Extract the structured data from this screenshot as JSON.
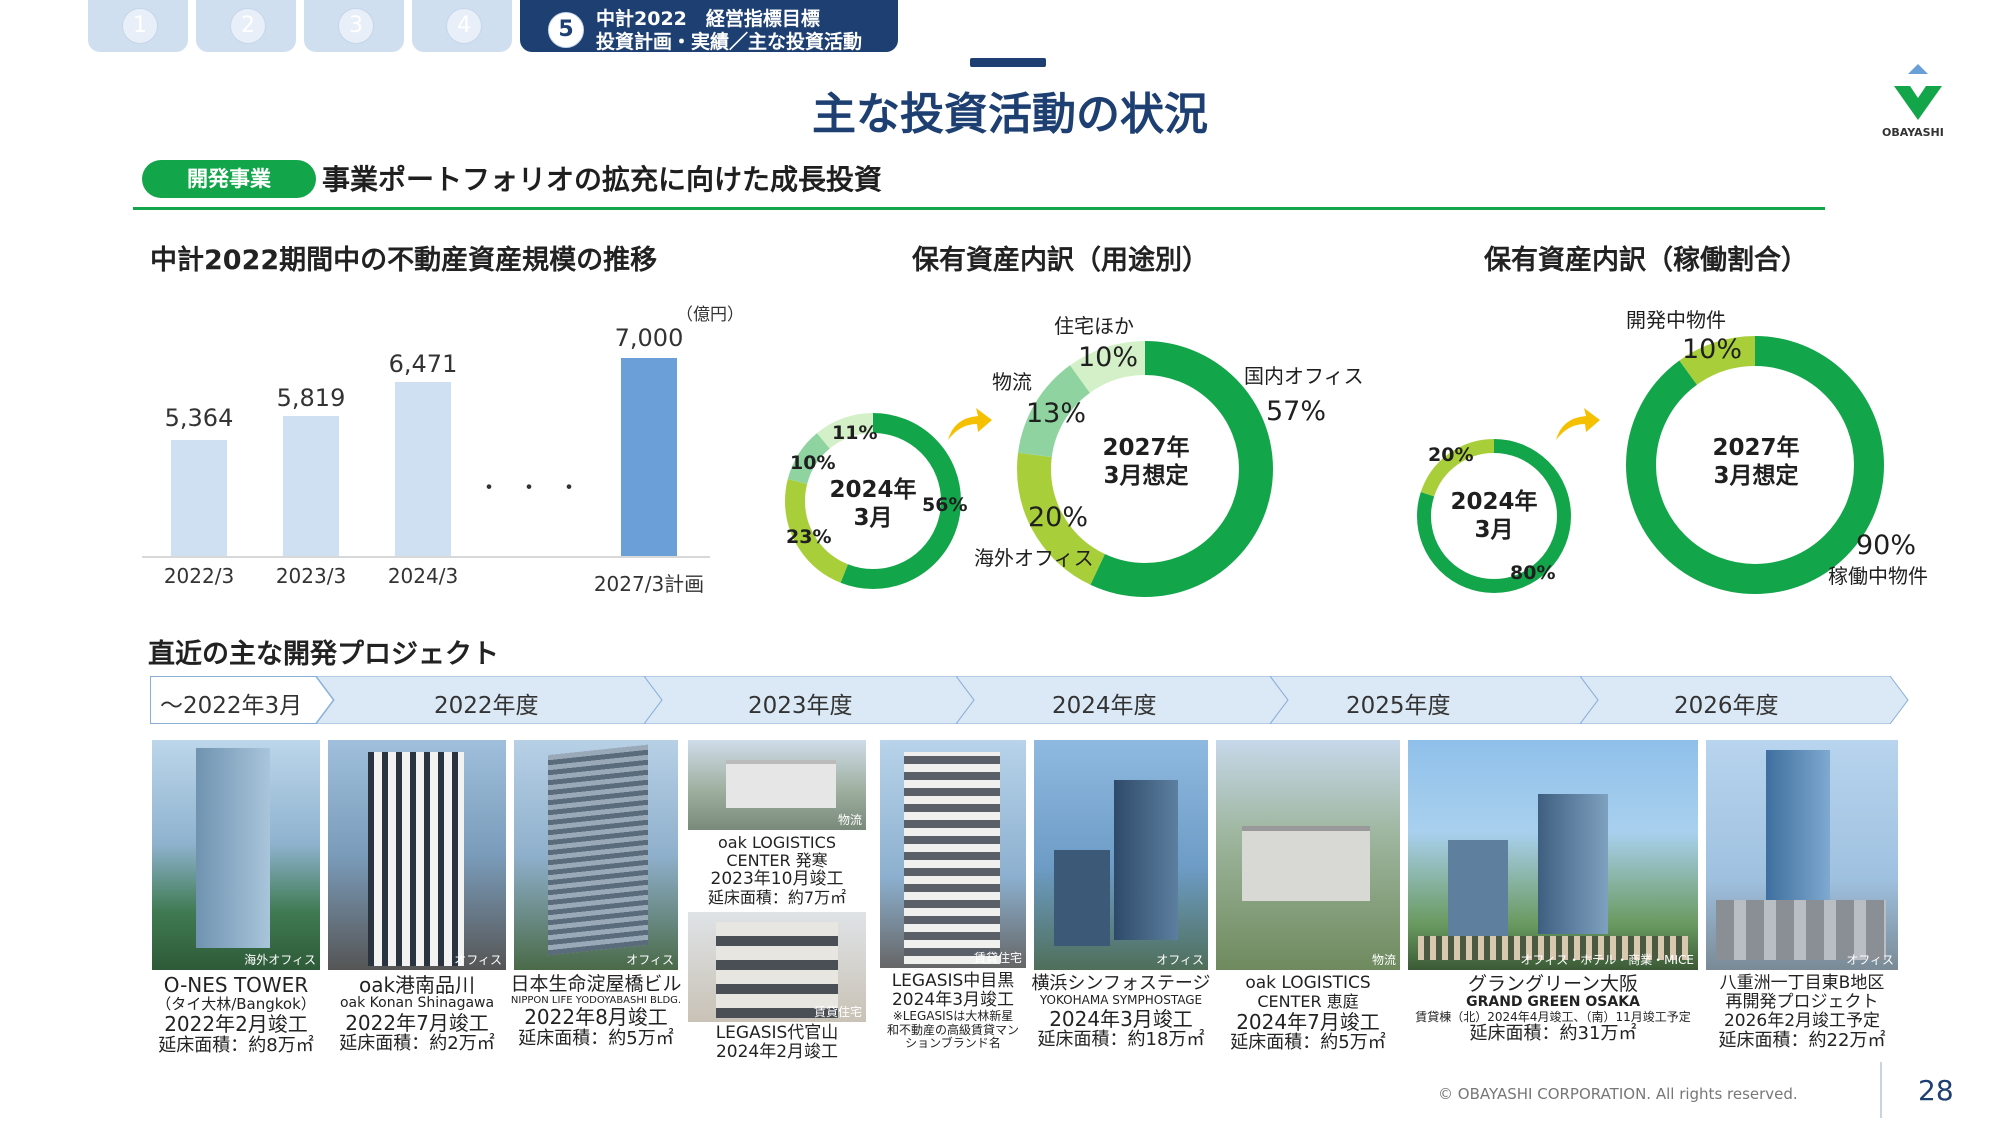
{
  "tabs": [
    "1",
    "2",
    "3",
    "4"
  ],
  "active_tab": {
    "num": "5",
    "line1": "中計2022　経営指標目標",
    "line2": "投資計画・実績／主な投資活動"
  },
  "page_title": "主な投資活動の状況",
  "logo_text": "OBAYASHI",
  "section_pill": "開発事業",
  "subtitle": "事業ポートフォリオの拡充に向けた成長投資",
  "chart1": {
    "title": "中計2022期間中の不動産資産規模の推移",
    "unit": "（億円）",
    "categories": [
      "2022/3",
      "2023/3",
      "2024/3",
      "2027/3計画"
    ],
    "labels": [
      "5,364",
      "5,819",
      "6,471",
      "7,000"
    ],
    "dots": "・・・"
  },
  "chart2": {
    "title": "保有資産内訳（用途別）",
    "small_center1": "2024年",
    "small_center2": "3月",
    "small_labels": [
      "11%",
      "10%",
      "23%",
      "56%"
    ],
    "big_center1": "2027年",
    "big_center2": "3月想定",
    "big_names": [
      "住宅ほか",
      "物流",
      "国内オフィス",
      "海外オフィス"
    ],
    "big_labels": [
      "10%",
      "13%",
      "57%",
      "20%"
    ]
  },
  "chart3": {
    "title": "保有資産内訳（稼働割合）",
    "small_center1": "2024年",
    "small_center2": "3月",
    "small_labels": [
      "20%",
      "80%"
    ],
    "big_center1": "2027年",
    "big_center2": "3月想定",
    "big_names": [
      "開発中物件",
      "稼働中物件"
    ],
    "big_labels": [
      "10%",
      "90%"
    ]
  },
  "projects_title": "直近の主な開発プロジェクト",
  "timeline": [
    "～2022年3月",
    "2022年度",
    "2023年度",
    "2024年度",
    "2025年度",
    "2026年度"
  ],
  "projects": [
    {
      "tag": "海外オフィス",
      "l1": "O-NES TOWER",
      "l2": "（タイ大林/Bangkok）",
      "l3": "2022年2月竣工",
      "l4": "延床面積：約8万㎡"
    },
    {
      "tag": "オフィス",
      "l1": "oak港南品川",
      "l2": "oak Konan Shinagawa",
      "l3": "2022年7月竣工",
      "l4": "延床面積：約2万㎡"
    },
    {
      "tag": "オフィス",
      "l1": "日本生命淀屋橋ビル",
      "l2": "NIPPON LIFE YODOYABASHI BLDG.",
      "l3": "2022年8月竣工",
      "l4": "延床面積：約5万㎡"
    },
    {
      "tag": "物流",
      "l1": "oak LOGISTICS",
      "l2": "CENTER 発寒",
      "l3": "2023年10月竣工",
      "l4": "延床面積：約7万㎡"
    },
    {
      "tag": "賃貸住宅",
      "l1": "LEGASIS代官山",
      "l2": "2024年2月竣工"
    },
    {
      "tag": "賃貸住宅",
      "l1": "LEGASIS中目黒",
      "l2": "2024年3月竣工",
      "l3": "※LEGASISは大林新星",
      "l4": "和不動産の高級賃貸マン",
      "l5": "ションブランド名"
    },
    {
      "tag": "オフィス",
      "l1": "横浜シンフォステージ",
      "l2": "YOKOHAMA SYMPHOSTAGE",
      "l3": "2024年3月竣工",
      "l4": "延床面積：約18万㎡"
    },
    {
      "tag": "物流",
      "l1": "oak LOGISTICS",
      "l2": "CENTER 恵庭",
      "l3": "2024年7月竣工",
      "l4": "延床面積：約5万㎡"
    },
    {
      "tag": "オフィス・ホテル・商業・MICE",
      "l1": "グラングリーン大阪",
      "l2": "GRAND GREEN OSAKA",
      "l3": "賃貸棟（北）2024年4月竣工、（南）11月竣工予定",
      "l4": "延床面積：約31万㎡"
    },
    {
      "tag": "オフィス",
      "l1": "八重洲一丁目東B地区",
      "l2": "再開発プロジェクト",
      "l3": "2026年2月竣工予定",
      "l4": "延床面積：約22万㎡"
    }
  ],
  "footer": {
    "copyright": "© OBAYASHI CORPORATION. All rights reserved.",
    "page": "28"
  },
  "colors": {
    "navy": "#1d3f72",
    "green": "#12a54a",
    "lime": "#a8cf3a",
    "mint": "#8fd4a0",
    "pale": "#d4f0c8",
    "bar": "#cfe0f2",
    "bar_plan": "#6a9fd8",
    "arrow": "#f5c000"
  }
}
